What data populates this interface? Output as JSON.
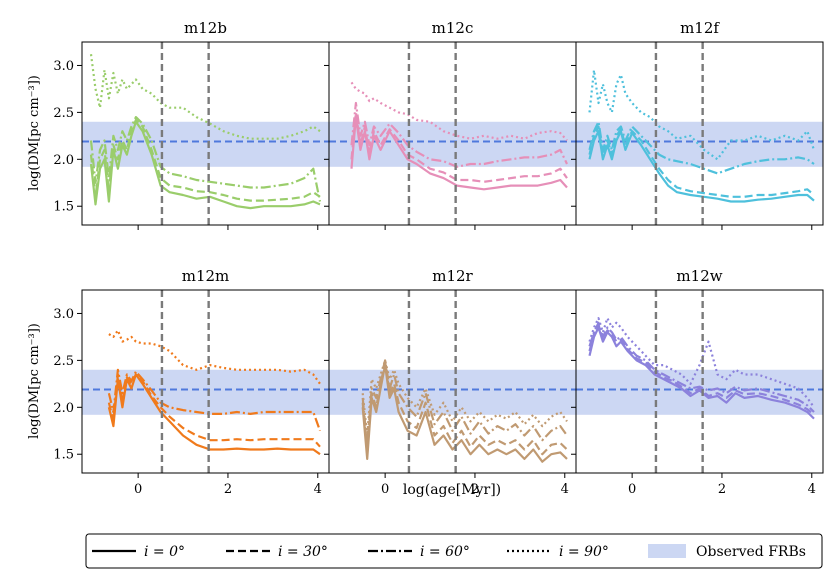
{
  "chart_data": {
    "type": "line",
    "xlabel": "log(age[Myr])",
    "ylabel": "log(DM[pc cm⁻³])",
    "xlim": [
      -1.25,
      4.25
    ],
    "ylim": [
      1.3,
      3.25
    ],
    "xticks": [
      0,
      2,
      4
    ],
    "yticks": [
      1.5,
      2.0,
      2.5,
      3.0
    ],
    "xtick_labels": [
      "0",
      "2",
      "4"
    ],
    "ytick_labels": [
      "1.5",
      "2.0",
      "2.5",
      "3.0"
    ],
    "observed_band": [
      1.92,
      2.4
    ],
    "observed_median": 2.19,
    "vlines": [
      0.53,
      1.57
    ],
    "legend": {
      "location": "bottom-center",
      "entries": [
        {
          "key": "i0",
          "label": "i = 0°",
          "style": "solid"
        },
        {
          "key": "i30",
          "label": "i = 30°",
          "style": "dashed"
        },
        {
          "key": "i60",
          "label": "i = 60°",
          "style": "dashdot"
        },
        {
          "key": "i90",
          "label": "i = 90°",
          "style": "dotted"
        },
        {
          "key": "frb",
          "label": "Observed FRBs",
          "style": "band"
        }
      ]
    },
    "colors": {
      "band": "#ccd7f3",
      "median": "#4f79dc",
      "vline": "#7a7a7a",
      "axis": "#000000"
    },
    "panels": [
      {
        "title": "m12b",
        "color": "#9acd6b",
        "x": [
          -1.05,
          -0.95,
          -0.85,
          -0.75,
          -0.65,
          -0.55,
          -0.45,
          -0.35,
          -0.25,
          -0.15,
          -0.05,
          0.1,
          0.3,
          0.5,
          0.7,
          1.0,
          1.3,
          1.6,
          1.9,
          2.2,
          2.5,
          2.8,
          3.1,
          3.4,
          3.7,
          3.9,
          4.05
        ],
        "series": {
          "i0": [
            1.95,
            1.52,
            1.9,
            2.0,
            1.55,
            2.1,
            1.9,
            2.15,
            2.05,
            2.25,
            2.4,
            2.3,
            2.05,
            1.72,
            1.65,
            1.62,
            1.58,
            1.6,
            1.55,
            1.5,
            1.48,
            1.5,
            1.5,
            1.5,
            1.52,
            1.55,
            1.52
          ],
          "i30": [
            2.05,
            1.6,
            2.0,
            2.1,
            1.65,
            2.15,
            2.0,
            2.2,
            2.1,
            2.3,
            2.42,
            2.35,
            2.1,
            1.8,
            1.72,
            1.7,
            1.66,
            1.65,
            1.62,
            1.58,
            1.56,
            1.56,
            1.57,
            1.58,
            1.6,
            1.65,
            1.6
          ],
          "i60": [
            2.2,
            1.75,
            2.1,
            2.2,
            1.8,
            2.25,
            2.1,
            2.3,
            2.2,
            2.35,
            2.45,
            2.38,
            2.2,
            1.92,
            1.85,
            1.82,
            1.78,
            1.76,
            1.74,
            1.72,
            1.7,
            1.7,
            1.72,
            1.74,
            1.8,
            1.9,
            1.55
          ],
          "i90": [
            3.12,
            2.75,
            2.55,
            2.95,
            2.65,
            2.92,
            2.7,
            2.85,
            2.75,
            2.8,
            2.85,
            2.75,
            2.7,
            2.6,
            2.55,
            2.55,
            2.45,
            2.38,
            2.3,
            2.25,
            2.22,
            2.22,
            2.22,
            2.25,
            2.3,
            2.35,
            2.3
          ]
        }
      },
      {
        "title": "m12c",
        "color": "#e68fb8",
        "x": [
          -0.75,
          -0.65,
          -0.55,
          -0.45,
          -0.35,
          -0.25,
          -0.1,
          0.1,
          0.3,
          0.5,
          0.7,
          1.0,
          1.3,
          1.6,
          1.9,
          2.2,
          2.5,
          2.8,
          3.1,
          3.4,
          3.7,
          3.9,
          4.05
        ],
        "series": {
          "i0": [
            1.9,
            2.45,
            2.1,
            2.3,
            2.0,
            2.25,
            2.1,
            2.3,
            2.15,
            2.0,
            1.95,
            1.85,
            1.8,
            1.72,
            1.7,
            1.68,
            1.7,
            1.72,
            1.72,
            1.72,
            1.75,
            1.78,
            1.7
          ],
          "i30": [
            2.0,
            2.5,
            2.15,
            2.35,
            2.05,
            2.3,
            2.15,
            2.32,
            2.2,
            2.05,
            2.0,
            1.9,
            1.86,
            1.78,
            1.78,
            1.76,
            1.78,
            1.8,
            1.82,
            1.82,
            1.85,
            1.9,
            1.8
          ],
          "i60": [
            2.15,
            2.6,
            2.25,
            2.4,
            2.15,
            2.35,
            2.25,
            2.38,
            2.28,
            2.15,
            2.08,
            2.0,
            1.98,
            1.92,
            1.95,
            1.95,
            1.98,
            2.0,
            2.02,
            2.02,
            2.05,
            2.1,
            1.95
          ],
          "i90": [
            2.82,
            2.75,
            2.72,
            2.7,
            2.62,
            2.65,
            2.6,
            2.55,
            2.5,
            2.48,
            2.42,
            2.4,
            2.3,
            2.25,
            2.22,
            2.25,
            2.22,
            2.25,
            2.22,
            2.28,
            2.3,
            2.28,
            2.2
          ]
        }
      },
      {
        "title": "m12f",
        "color": "#4ec0dc",
        "x": [
          -0.95,
          -0.85,
          -0.75,
          -0.65,
          -0.55,
          -0.45,
          -0.35,
          -0.25,
          -0.15,
          0.0,
          0.2,
          0.4,
          0.6,
          0.8,
          1.0,
          1.3,
          1.6,
          1.9,
          2.2,
          2.5,
          2.8,
          3.1,
          3.4,
          3.7,
          3.9,
          4.05
        ],
        "series": {
          "i0": [
            2.0,
            2.2,
            2.3,
            2.0,
            2.15,
            2.0,
            2.2,
            2.3,
            2.1,
            2.28,
            2.15,
            2.0,
            1.85,
            1.72,
            1.65,
            1.62,
            1.6,
            1.58,
            1.55,
            1.55,
            1.57,
            1.58,
            1.6,
            1.62,
            1.62,
            1.56
          ],
          "i30": [
            2.05,
            2.25,
            2.35,
            2.05,
            2.2,
            2.05,
            2.25,
            2.32,
            2.15,
            2.3,
            2.2,
            2.05,
            1.9,
            1.78,
            1.7,
            1.66,
            1.64,
            1.62,
            1.6,
            1.6,
            1.62,
            1.62,
            1.64,
            1.66,
            1.68,
            1.62
          ],
          "i60": [
            2.1,
            2.3,
            2.4,
            2.1,
            2.25,
            2.1,
            2.3,
            2.35,
            2.2,
            2.35,
            2.25,
            2.15,
            2.05,
            2.0,
            1.98,
            1.95,
            1.9,
            1.85,
            1.9,
            1.95,
            1.98,
            2.0,
            2.0,
            2.02,
            2.0,
            1.95
          ],
          "i90": [
            2.5,
            2.95,
            2.6,
            2.8,
            2.6,
            2.5,
            2.8,
            2.9,
            2.7,
            2.6,
            2.5,
            2.45,
            2.35,
            2.3,
            2.22,
            2.25,
            2.1,
            2.0,
            2.2,
            2.2,
            2.25,
            2.2,
            2.25,
            2.2,
            2.3,
            2.1
          ]
        }
      },
      {
        "title": "m12m",
        "color": "#f07a1c",
        "x": [
          -0.65,
          -0.55,
          -0.45,
          -0.35,
          -0.25,
          -0.15,
          -0.05,
          0.1,
          0.3,
          0.5,
          0.7,
          1.0,
          1.3,
          1.6,
          1.9,
          2.2,
          2.5,
          2.8,
          3.1,
          3.4,
          3.7,
          3.9,
          4.05
        ],
        "series": {
          "i0": [
            2.0,
            1.8,
            2.3,
            2.0,
            2.3,
            2.2,
            2.35,
            2.25,
            2.1,
            1.95,
            1.85,
            1.7,
            1.6,
            1.55,
            1.55,
            1.56,
            1.55,
            1.55,
            1.56,
            1.55,
            1.55,
            1.55,
            1.5
          ],
          "i30": [
            2.05,
            1.85,
            2.35,
            2.05,
            2.32,
            2.25,
            2.35,
            2.28,
            2.12,
            2.0,
            1.9,
            1.78,
            1.7,
            1.65,
            1.65,
            1.66,
            1.65,
            1.66,
            1.66,
            1.66,
            1.66,
            1.66,
            1.58
          ],
          "i60": [
            2.15,
            1.95,
            2.4,
            2.15,
            2.35,
            2.28,
            2.38,
            2.3,
            2.18,
            2.05,
            2.0,
            1.97,
            1.95,
            1.93,
            1.93,
            1.95,
            1.93,
            1.95,
            1.95,
            1.95,
            1.95,
            1.95,
            1.75
          ],
          "i90": [
            2.78,
            2.75,
            2.82,
            2.7,
            2.72,
            2.75,
            2.7,
            2.68,
            2.68,
            2.65,
            2.6,
            2.45,
            2.4,
            2.45,
            2.42,
            2.4,
            2.4,
            2.4,
            2.4,
            2.38,
            2.4,
            2.35,
            2.25
          ]
        }
      },
      {
        "title": "m12r",
        "color": "#c09a72",
        "x": [
          -0.5,
          -0.4,
          -0.3,
          -0.2,
          -0.1,
          0.0,
          0.1,
          0.2,
          0.3,
          0.5,
          0.7,
          0.9,
          1.1,
          1.3,
          1.5,
          1.7,
          1.9,
          2.1,
          2.3,
          2.5,
          2.7,
          2.9,
          3.1,
          3.3,
          3.5,
          3.7,
          3.9,
          4.05
        ],
        "series": {
          "i0": [
            2.0,
            1.45,
            2.1,
            1.95,
            2.2,
            2.45,
            2.1,
            2.2,
            1.95,
            1.75,
            1.7,
            1.95,
            1.6,
            1.7,
            1.55,
            1.65,
            1.5,
            1.6,
            1.5,
            1.55,
            1.5,
            1.55,
            1.45,
            1.55,
            1.42,
            1.5,
            1.52,
            1.45
          ],
          "i30": [
            2.05,
            1.5,
            2.15,
            2.0,
            2.25,
            2.48,
            2.15,
            2.25,
            2.05,
            1.85,
            1.78,
            2.05,
            1.7,
            1.8,
            1.62,
            1.75,
            1.58,
            1.7,
            1.6,
            1.65,
            1.6,
            1.65,
            1.55,
            1.65,
            1.5,
            1.6,
            1.62,
            1.55
          ],
          "i60": [
            2.1,
            1.6,
            2.2,
            2.1,
            2.3,
            2.5,
            2.2,
            2.35,
            2.15,
            2.0,
            1.9,
            2.15,
            1.82,
            1.95,
            1.75,
            1.9,
            1.72,
            1.85,
            1.72,
            1.8,
            1.75,
            1.82,
            1.7,
            1.8,
            1.65,
            1.75,
            1.8,
            1.7
          ],
          "i90": [
            2.15,
            1.7,
            2.3,
            2.2,
            2.35,
            2.5,
            2.3,
            2.4,
            2.25,
            2.1,
            2.0,
            2.2,
            1.92,
            2.05,
            1.85,
            2.0,
            1.85,
            1.95,
            1.85,
            1.92,
            1.88,
            1.95,
            1.82,
            1.92,
            1.8,
            1.9,
            1.95,
            1.85
          ]
        }
      },
      {
        "title": "m12w",
        "color": "#8c82dc",
        "x": [
          -0.95,
          -0.85,
          -0.75,
          -0.65,
          -0.55,
          -0.45,
          -0.35,
          -0.25,
          -0.1,
          0.1,
          0.3,
          0.5,
          0.7,
          0.9,
          1.1,
          1.3,
          1.5,
          1.7,
          1.9,
          2.1,
          2.3,
          2.5,
          2.8,
          3.1,
          3.4,
          3.7,
          3.9,
          4.05
        ],
        "series": {
          "i0": [
            2.55,
            2.75,
            2.85,
            2.7,
            2.8,
            2.75,
            2.65,
            2.7,
            2.6,
            2.5,
            2.45,
            2.35,
            2.3,
            2.25,
            2.2,
            2.12,
            2.18,
            2.1,
            2.12,
            2.05,
            2.15,
            2.1,
            2.12,
            2.08,
            2.05,
            2.0,
            1.95,
            1.88
          ],
          "i30": [
            2.6,
            2.78,
            2.88,
            2.72,
            2.82,
            2.78,
            2.7,
            2.72,
            2.62,
            2.52,
            2.48,
            2.38,
            2.32,
            2.28,
            2.22,
            2.15,
            2.2,
            2.12,
            2.15,
            2.1,
            2.18,
            2.14,
            2.15,
            2.12,
            2.08,
            2.03,
            1.98,
            1.92
          ],
          "i60": [
            2.65,
            2.8,
            2.9,
            2.75,
            2.85,
            2.8,
            2.72,
            2.75,
            2.65,
            2.55,
            2.5,
            2.4,
            2.35,
            2.3,
            2.25,
            2.2,
            2.22,
            2.18,
            2.2,
            2.15,
            2.22,
            2.18,
            2.2,
            2.16,
            2.12,
            2.08,
            2.02,
            1.95
          ],
          "i90": [
            2.7,
            2.85,
            2.95,
            2.8,
            2.95,
            2.85,
            2.9,
            2.85,
            2.75,
            2.65,
            2.55,
            2.45,
            2.45,
            2.4,
            2.35,
            2.25,
            2.45,
            2.7,
            2.35,
            2.3,
            2.4,
            2.35,
            2.35,
            2.3,
            2.25,
            2.2,
            2.1,
            2.0
          ]
        }
      }
    ]
  }
}
